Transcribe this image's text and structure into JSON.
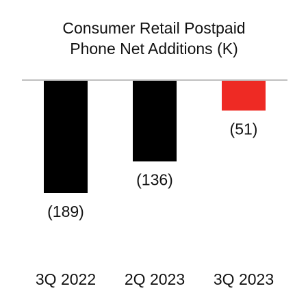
{
  "chart_data": {
    "type": "bar",
    "title": "Consumer Retail Postpaid\nPhone Net Additions (K)",
    "categories": [
      "3Q 2022",
      "2Q 2023",
      "3Q 2023"
    ],
    "values": [
      -189,
      -136,
      -51
    ],
    "data_labels": [
      "(189)",
      "(136)",
      "(51)"
    ],
    "colors": [
      "#000000",
      "#000000",
      "#ee2a24"
    ],
    "baseline_color": "#bfbfbf",
    "xlabel": "",
    "ylabel": "",
    "ylim": [
      -200,
      0
    ],
    "grid": false,
    "legend": "none"
  }
}
